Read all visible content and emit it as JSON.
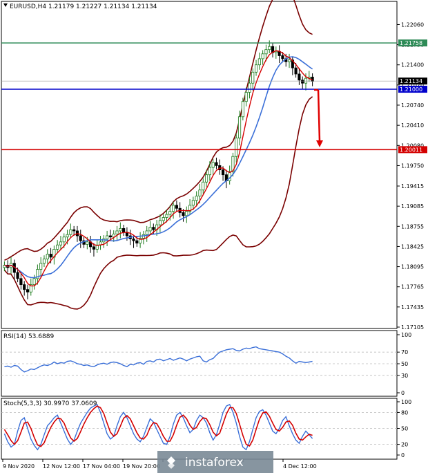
{
  "chart_data": [
    {
      "type": "candlestick",
      "title": "EURUSD,H4  1.21179 1.21227 1.21134 1.21134",
      "ylim": [
        1.17105,
        1.22235
      ],
      "y_ticks": [
        "1.22060",
        "1.21730",
        "1.21400",
        "1.21070",
        "1.20740",
        "1.20410",
        "1.20080",
        "1.19750",
        "1.19415",
        "1.19085",
        "1.18755",
        "1.18425",
        "1.18095",
        "1.17765",
        "1.17435",
        "1.17105"
      ],
      "x_ticks": [
        "9 Nov 2020",
        "12 Nov 12:00",
        "17 Nov 04:00",
        "19 Nov 20:00",
        "",
        "",
        "",
        "4 Dec 12:00"
      ],
      "levels": [
        {
          "value": 1.21758,
          "label": "1.21758",
          "color": "#2e8b57"
        },
        {
          "value": 1.21,
          "label": "1.21000",
          "color": "#0000cc"
        },
        {
          "value": 1.20011,
          "label": "1.20011",
          "color": "#d40000"
        }
      ],
      "last_price": {
        "value": 1.21134,
        "label": "1.21134"
      },
      "colors": {
        "bull": "#1a7a1a",
        "bear": "#000000",
        "ma_fast": "#d40000",
        "ma_slow": "#3a6fd8",
        "bands": "#7a0000",
        "arrow": "#e00000"
      },
      "series": [
        {
          "name": "price",
          "close": [
            1.1812,
            1.1808,
            1.1815,
            1.18,
            1.179,
            1.178,
            1.1772,
            1.1768,
            1.178,
            1.179,
            1.1805,
            1.1815,
            1.1822,
            1.183,
            1.1825,
            1.1838,
            1.1845,
            1.185,
            1.1858,
            1.1862,
            1.187,
            1.1868,
            1.186,
            1.1852,
            1.1846,
            1.185,
            1.1842,
            1.1838,
            1.1845,
            1.185,
            1.1855,
            1.186,
            1.1858,
            1.1863,
            1.1868,
            1.1872,
            1.1866,
            1.186,
            1.1855,
            1.1852,
            1.1848,
            1.1856,
            1.1862,
            1.1868,
            1.1874,
            1.187,
            1.1878,
            1.1885,
            1.189,
            1.1895,
            1.19,
            1.191,
            1.1905,
            1.1898,
            1.1893,
            1.19,
            1.191,
            1.1918,
            1.1925,
            1.1935,
            1.1948,
            1.196,
            1.1972,
            1.198,
            1.1975,
            1.1968,
            1.196,
            1.195,
            1.1965,
            1.199,
            1.202,
            1.2055,
            1.208,
            1.2095,
            1.211,
            1.2128,
            1.214,
            1.215,
            1.2158,
            1.2165,
            1.217,
            1.216,
            1.2162,
            1.2155,
            1.215,
            1.2145,
            1.2148,
            1.2135,
            1.2125,
            1.2115,
            1.211,
            1.2118,
            1.212,
            1.2113
          ]
        }
      ]
    },
    {
      "type": "line",
      "title": "RSI(14) 53.6889",
      "ylim": [
        0,
        100
      ],
      "y_ticks": [
        "100",
        "70",
        "50",
        "30",
        "0"
      ],
      "guides": [
        70,
        50,
        30
      ],
      "colors": {
        "line": "#3a6fd8"
      },
      "series": [
        {
          "name": "RSI(14)",
          "values": [
            45,
            46,
            44,
            47,
            46,
            40,
            36,
            38,
            41,
            40,
            43,
            46,
            48,
            47,
            49,
            53,
            50,
            52,
            51,
            54,
            55,
            53,
            50,
            49,
            47,
            48,
            46,
            45,
            48,
            50,
            51,
            49,
            52,
            53,
            52,
            50,
            47,
            45,
            49,
            48,
            51,
            52,
            49,
            54,
            55,
            53,
            57,
            58,
            55,
            57,
            59,
            56,
            58,
            60,
            58,
            55,
            58,
            60,
            62,
            63,
            55,
            53,
            57,
            59,
            65,
            70,
            72,
            74,
            75,
            76,
            73,
            72,
            75,
            77,
            76,
            78,
            79,
            76,
            75,
            74,
            73,
            72,
            71,
            70,
            67,
            63,
            60,
            55,
            51,
            54,
            53,
            52,
            53,
            54
          ]
        }
      ]
    },
    {
      "type": "line",
      "title": "Stoch(5,3,3) 30.9970 37.0609",
      "ylim": [
        0,
        100
      ],
      "y_ticks": [
        "100",
        "80",
        "50",
        "20",
        "0"
      ],
      "guides": [
        80,
        50,
        20
      ],
      "colors": {
        "main": "#3a6fd8",
        "signal": "#d40000"
      },
      "series": [
        {
          "name": "main",
          "values": [
            40,
            25,
            15,
            20,
            45,
            65,
            70,
            50,
            30,
            18,
            10,
            20,
            38,
            55,
            62,
            70,
            75,
            60,
            45,
            30,
            20,
            28,
            45,
            60,
            70,
            80,
            88,
            92,
            95,
            80,
            60,
            40,
            30,
            35,
            55,
            72,
            80,
            70,
            55,
            40,
            30,
            25,
            35,
            52,
            68,
            62,
            48,
            35,
            22,
            20,
            35,
            58,
            75,
            80,
            70,
            55,
            42,
            48,
            65,
            75,
            70,
            60,
            42,
            28,
            38,
            58,
            80,
            92,
            95,
            80,
            60,
            35,
            15,
            10,
            25,
            48,
            70,
            82,
            85,
            75,
            60,
            45,
            40,
            50,
            65,
            72,
            55,
            40,
            28,
            22,
            35,
            45,
            38,
            31
          ]
        },
        {
          "name": "signal",
          "values": [
            48,
            38,
            27,
            20,
            27,
            43,
            60,
            62,
            50,
            33,
            19,
            16,
            23,
            38,
            52,
            62,
            69,
            68,
            60,
            45,
            32,
            26,
            31,
            44,
            58,
            70,
            80,
            87,
            92,
            89,
            78,
            60,
            43,
            35,
            40,
            54,
            69,
            74,
            68,
            55,
            42,
            32,
            30,
            37,
            52,
            61,
            59,
            48,
            35,
            26,
            26,
            38,
            56,
            71,
            75,
            68,
            56,
            48,
            52,
            63,
            70,
            68,
            57,
            43,
            36,
            41,
            59,
            77,
            89,
            89,
            78,
            58,
            37,
            20,
            17,
            28,
            48,
            67,
            79,
            81,
            73,
            60,
            48,
            45,
            52,
            62,
            64,
            56,
            41,
            30,
            28,
            34,
            39,
            37
          ]
        }
      ]
    }
  ],
  "watermark": {
    "brand": "instaforex"
  }
}
